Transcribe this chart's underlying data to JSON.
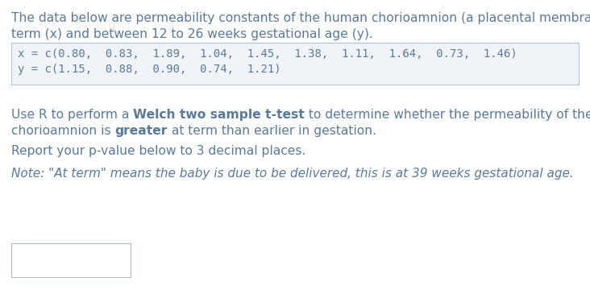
{
  "text_color": "#5a7a9a",
  "bg_color": "#ffffff",
  "code_bg_color": "#f0f4f8",
  "code_border_color": "#b0c4d8",
  "input_box_border": "#b0b8c4",
  "p1_line1": "The data below are permeability constants of the human chorioamnion (a placental membrane) at",
  "p1_line2": "term (x) and between 12 to 26 weeks gestational age (y).",
  "code_line1": "x = c(0.80,  0.83,  1.89,  1.04,  1.45,  1.38,  1.11,  1.64,  0.73,  1.46)",
  "code_line2": "y = c(1.15,  0.88,  0.90,  0.74,  1.21)",
  "p3_pre_bold": "Use R to perform a ",
  "p3_bold1": "Welch two sample t-test",
  "p3_post_bold1": " to determine whether the permeability of the human",
  "p3_line2_pre": "chorioamnion is ",
  "p3_bold2": "greater",
  "p3_line2_post": " at term than earlier in gestation.",
  "p4": "Report your p-value below to 3 decimal places.",
  "p5": "Note: \"At term\" means the baby is due to be delivered, this is at 39 weeks gestational age.",
  "font_size_main": 11.2,
  "font_size_code": 10.0,
  "font_size_note": 11.0
}
